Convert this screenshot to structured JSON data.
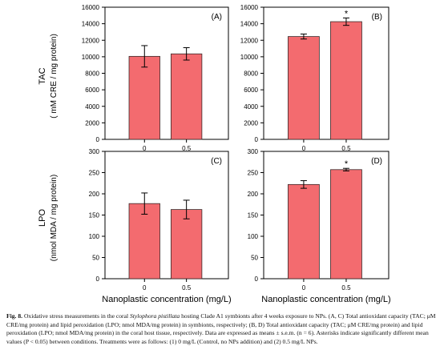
{
  "figure": {
    "y_label_top": "TAC",
    "y_label_top_units": "(   mM CRE / mg protein)",
    "y_label_bottom": "LPO",
    "y_label_bottom_units": "(nmol MDA / mg protein)",
    "x_label": "Nanoplastic concentration (mg/L)",
    "bar_color": "#f36b6f",
    "bar_edge": "#3a2a2a"
  },
  "chart_data": [
    {
      "type": "bar",
      "panel_label": "(A)",
      "position": "top-left",
      "categories": [
        "0",
        "0.5"
      ],
      "values": [
        10050,
        10350
      ],
      "errors": [
        1300,
        750
      ],
      "significance": [
        "",
        ""
      ],
      "ylim": [
        0,
        16000
      ],
      "yticks": [
        0,
        2000,
        4000,
        6000,
        8000,
        10000,
        12000,
        14000,
        16000
      ]
    },
    {
      "type": "bar",
      "panel_label": "(B)",
      "position": "top-right",
      "categories": [
        "0",
        "0.5"
      ],
      "values": [
        12450,
        14250
      ],
      "errors": [
        300,
        450
      ],
      "significance": [
        "",
        "*"
      ],
      "ylim": [
        0,
        16000
      ],
      "yticks": [
        0,
        2000,
        4000,
        6000,
        8000,
        10000,
        12000,
        14000,
        16000
      ]
    },
    {
      "type": "bar",
      "panel_label": "(C)",
      "position": "bottom-left",
      "categories": [
        "0",
        "0.5"
      ],
      "values": [
        177,
        163
      ],
      "errors": [
        25,
        22
      ],
      "significance": [
        "",
        ""
      ],
      "ylim": [
        0,
        300
      ],
      "yticks": [
        0,
        50,
        100,
        150,
        200,
        250,
        300
      ]
    },
    {
      "type": "bar",
      "panel_label": "(D)",
      "position": "bottom-right",
      "categories": [
        "0",
        "0.5"
      ],
      "values": [
        222,
        257
      ],
      "errors": [
        9,
        3
      ],
      "significance": [
        "",
        "*"
      ],
      "ylim": [
        0,
        300
      ],
      "yticks": [
        0,
        50,
        100,
        150,
        200,
        250,
        300
      ]
    }
  ],
  "caption": {
    "label": "Fig. 8.",
    "text_1": " Oxidative stress measurements in the coral ",
    "species": "Stylophora pistillata",
    "text_2": " hosting Clade A1 symbionts after 4 weeks exposure to NPs. (A, C) Total antioxidant capacity (TAC; μM CRE/mg protein) and lipid peroxidation (LPO; nmol MDA/mg protein) in symbionts, respectively; (B, D) Total antioxidant capacity (TAC; μM CRE/mg protein) and lipid peroxidation (LPO; nmol MDA/mg protein) in the coral host tissue, respectively. Data are expressed as means ± s.e.m. (n = 6). Asterisks indicate significantly different mean values (P < 0.05) between conditions. Treatments were as follows: (1) 0 mg/L (Control, no NPs addition) and (2) 0.5 mg/L NPs."
  }
}
